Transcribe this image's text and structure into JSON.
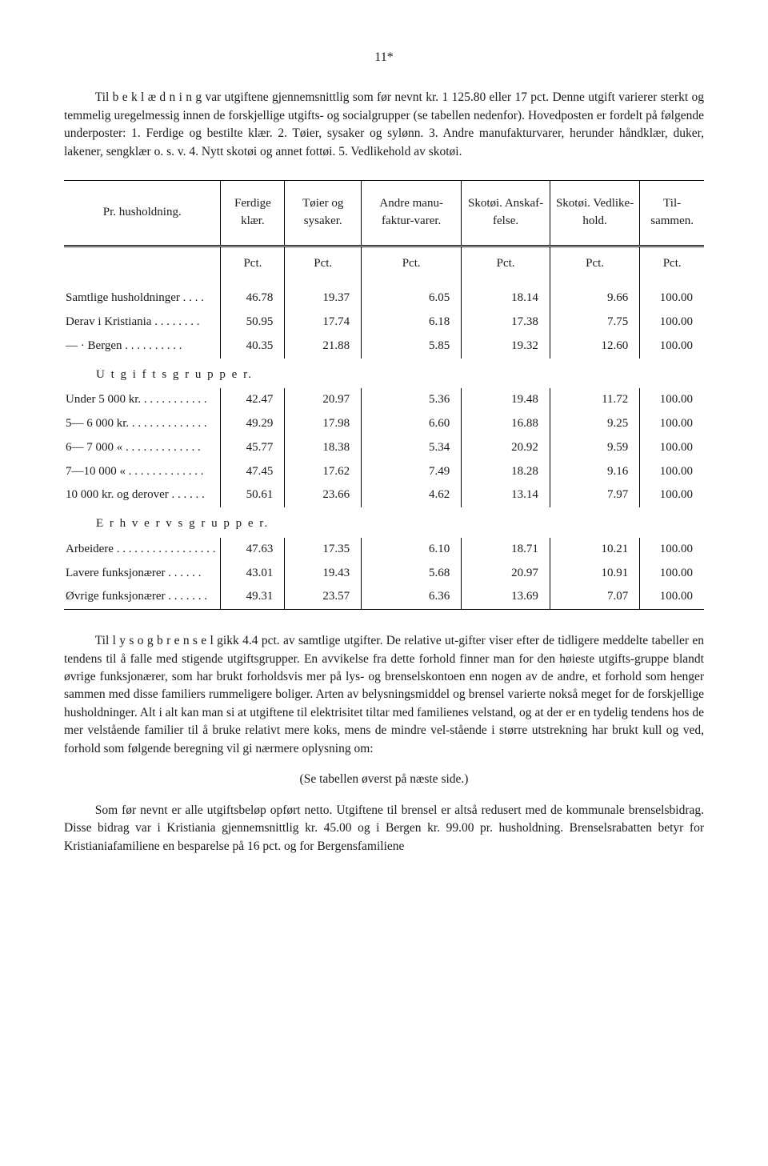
{
  "page_number": "11*",
  "intro_paragraph": "Til b e k l æ d n i n g var utgiftene gjennemsnittlig som før nevnt kr. 1 125.80 eller 17 pct. Denne utgift varierer sterkt og temmelig uregelmessig innen de forskjellige utgifts- og socialgrupper (se tabellen nedenfor). Hovedposten er fordelt på følgende underposter: 1. Ferdige og bestilte klær. 2. Tøier, sysaker og sylønn. 3. Andre manufakturvarer, herunder håndklær, duker, lakener, sengklær o. s. v. 4. Nytt skotøi og annet fottøi. 5. Vedlikehold av skotøi.",
  "table": {
    "columns": [
      "Pr. husholdning.",
      "Ferdige klær.",
      "Tøier og sysaker.",
      "Andre manu-faktur-varer.",
      "Skotøi. Anskaf-felse.",
      "Skotøi. Vedlike-hold.",
      "Til-sammen."
    ],
    "unit_row": [
      "",
      "Pct.",
      "Pct.",
      "Pct.",
      "Pct.",
      "Pct.",
      "Pct."
    ],
    "rows_main": [
      {
        "label": "Samtlige husholdninger . . . .",
        "v": [
          "46.78",
          "19.37",
          "6.05",
          "18.14",
          "9.66",
          "100.00"
        ]
      },
      {
        "label": "Derav i Kristiania . . . . . . . .",
        "v": [
          "50.95",
          "17.74",
          "6.18",
          "17.38",
          "7.75",
          "100.00"
        ]
      },
      {
        "label": "—   · Bergen . . . . . . . . . .",
        "v": [
          "40.35",
          "21.88",
          "5.85",
          "19.32",
          "12.60",
          "100.00"
        ]
      }
    ],
    "group1_title": "U t g i f t s g r u p p e r.",
    "rows_g1": [
      {
        "label": "Under 5 000 kr. . . . . . . . . . . .",
        "v": [
          "42.47",
          "20.97",
          "5.36",
          "19.48",
          "11.72",
          "100.00"
        ]
      },
      {
        "label": "5— 6 000 kr. . . . . . . . . . . . . .",
        "v": [
          "49.29",
          "17.98",
          "6.60",
          "16.88",
          "9.25",
          "100.00"
        ]
      },
      {
        "label": "6— 7 000  «  . . . . . . . . . . . . .",
        "v": [
          "45.77",
          "18.38",
          "5.34",
          "20.92",
          "9.59",
          "100.00"
        ]
      },
      {
        "label": "7—10 000  «  . . . . . . . . . . . . .",
        "v": [
          "47.45",
          "17.62",
          "7.49",
          "18.28",
          "9.16",
          "100.00"
        ]
      },
      {
        "label": "10 000 kr. og derover . . . . . .",
        "v": [
          "50.61",
          "23.66",
          "4.62",
          "13.14",
          "7.97",
          "100.00"
        ]
      }
    ],
    "group2_title": "E r h v e r v s g r u p p e r.",
    "rows_g2": [
      {
        "label": "Arbeidere . . . . . . . . . . . . . . . . .",
        "v": [
          "47.63",
          "17.35",
          "6.10",
          "18.71",
          "10.21",
          "100.00"
        ]
      },
      {
        "label": "Lavere funksjonærer . . . . . .",
        "v": [
          "43.01",
          "19.43",
          "5.68",
          "20.97",
          "10.91",
          "100.00"
        ]
      },
      {
        "label": "Øvrige funksjonærer . . . . . . .",
        "v": [
          "49.31",
          "23.57",
          "6.36",
          "13.69",
          "7.07",
          "100.00"
        ]
      }
    ]
  },
  "para2": "Til l y s  o g  b r e n s e l gikk 4.4 pct. av samtlige utgifter. De relative ut-gifter viser efter de tidligere meddelte tabeller en tendens til å falle med stigende utgiftsgrupper. En avvikelse fra dette forhold finner man for den høieste utgifts-gruppe blandt øvrige funksjonærer, som har brukt forholdsvis mer på lys- og brenselskontoen enn nogen av de andre, et forhold som henger sammen med disse familiers rummeligere boliger. Arten av belysningsmiddel og brensel varierte nokså meget for de forskjellige husholdninger. Alt i alt kan man si at utgiftene til elektrisitet tiltar med familienes velstand, og at der er en tydelig tendens hos de mer velstående familier til å bruke relativt mere koks, mens de mindre vel-stående i større utstrekning har brukt kull og ved, forhold som følgende beregning vil gi nærmere oplysning om:",
  "caption": "(Se tabellen øverst på næste side.)",
  "para3": "Som før nevnt er alle utgiftsbeløp opført netto. Utgiftene til brensel er altså redusert med de kommunale brenselsbidrag. Disse bidrag var i Kristiania gjennemsnittlig kr. 45.00 og i Bergen kr. 99.00 pr. husholdning. Brenselsrabatten betyr for Kristianiafamiliene en besparelse på 16 pct. og for Bergensfamiliene"
}
